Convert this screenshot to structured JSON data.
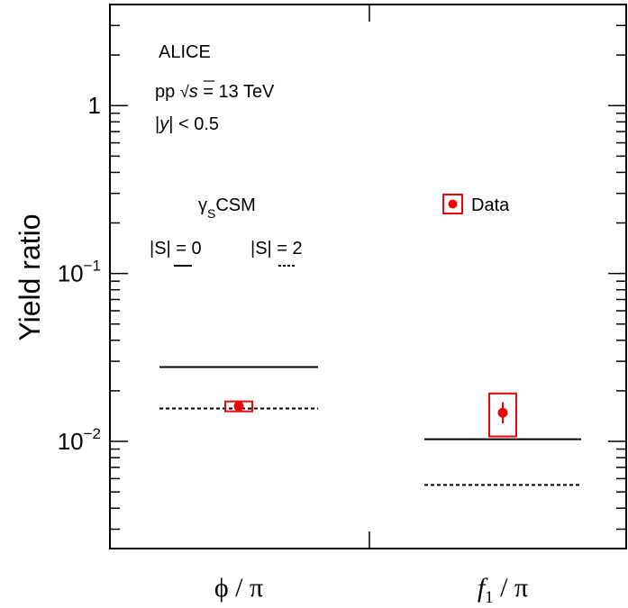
{
  "chart_data": {
    "type": "scatter",
    "ylabel": "Yield ratio",
    "yscale": "log",
    "ylim": [
      0.0023,
      4.0
    ],
    "y_ticks": [
      {
        "value": 1,
        "base": "1",
        "exp": ""
      },
      {
        "value": 0.1,
        "base": "10",
        "exp": "−1"
      },
      {
        "value": 0.01,
        "base": "10",
        "exp": "−2"
      }
    ],
    "categories": [
      {
        "name": "phi",
        "num": "ϕ",
        "sub": "",
        "den": "π"
      },
      {
        "name": "f1",
        "num": "f",
        "sub": "1",
        "den": "π"
      }
    ],
    "series": [
      {
        "name": "Data",
        "color": "#e8060b",
        "values": [
          0.0162,
          0.0148
        ],
        "stat_err": [
          [
            0.0159,
            0.0165
          ],
          [
            0.0128,
            0.0171
          ]
        ],
        "syst_err": [
          [
            0.0151,
            0.0173
          ],
          [
            0.0107,
            0.0193
          ]
        ]
      },
      {
        "name": "|S| = 0",
        "style": "solid",
        "values": [
          0.0277,
          0.0103
        ]
      },
      {
        "name": "|S| = 2",
        "style": "dashed",
        "values": [
          0.0157,
          0.0055
        ]
      }
    ],
    "annotations": {
      "experiment": "ALICE",
      "system_prefix": "pp ",
      "sqrt_symbol": "√",
      "system_var": "s",
      "system_suffix": " = 13 TeV",
      "rapidity_bar_left": "|",
      "rapidity_var": "y",
      "rapidity_suffix": "| < 0.5",
      "model_gamma": "γ",
      "model_sub": "S",
      "model_name": "CSM",
      "legend_data_label": "Data"
    },
    "grid": false
  }
}
